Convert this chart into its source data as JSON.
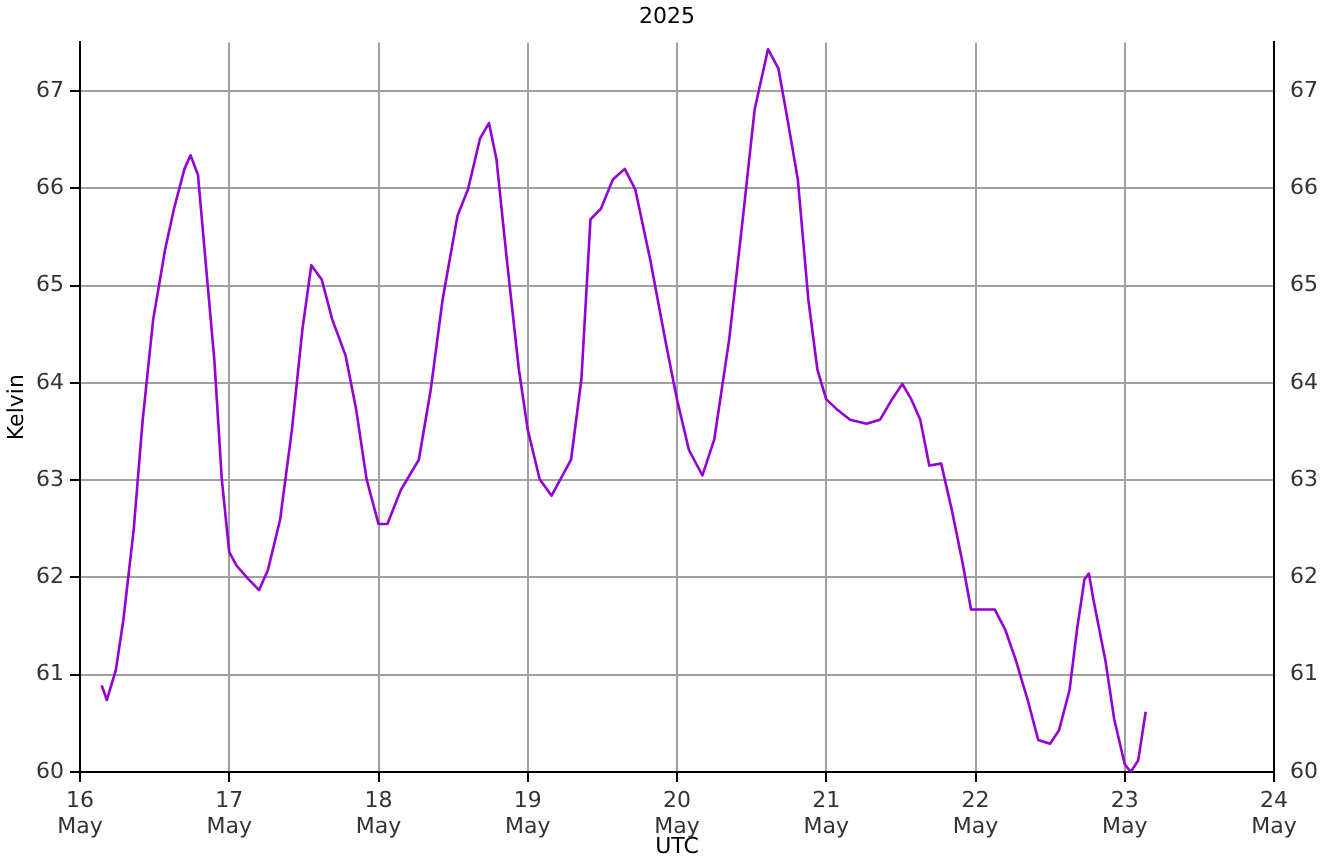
{
  "chart_data": {
    "type": "line",
    "title": "2025",
    "xlabel": "UTC",
    "ylabel": "Kelvin",
    "xlim": [
      "2025-05-16",
      "2025-05-24"
    ],
    "xticks": [
      {
        "value": "2025-05-16",
        "label": "16 May"
      },
      {
        "value": "2025-05-17",
        "label": "17 May"
      },
      {
        "value": "2025-05-18",
        "label": "18 May"
      },
      {
        "value": "2025-05-19",
        "label": "19 May"
      },
      {
        "value": "2025-05-20",
        "label": "20 May"
      },
      {
        "value": "2025-05-21",
        "label": "21 May"
      },
      {
        "value": "2025-05-22",
        "label": "22 May"
      },
      {
        "value": "2025-05-23",
        "label": "23 May"
      },
      {
        "value": "2025-05-24",
        "label": "24 May"
      }
    ],
    "ylim": [
      60,
      67.5
    ],
    "yticks": [
      60,
      61,
      62,
      63,
      64,
      65,
      66,
      67
    ],
    "y2lim": [
      60,
      67.5
    ],
    "y2ticks": [
      60,
      61,
      62,
      63,
      64,
      65,
      66,
      67
    ],
    "grid": true,
    "legend": false,
    "marker": "none",
    "line_style": "solid",
    "series": [
      {
        "color": "#9400d3",
        "x": [
          "2025-05-16T03:29",
          "2025-05-16T04:19",
          "2025-05-16T05:46",
          "2025-05-16T06:58",
          "2025-05-16T08:38",
          "2025-05-16T10:05",
          "2025-05-16T11:46",
          "2025-05-16T13:41",
          "2025-05-16T15:07",
          "2025-05-16T16:48",
          "2025-05-16T17:46",
          "2025-05-16T18:58",
          "2025-05-16T20:10",
          "2025-05-16T21:36",
          "2025-05-16T22:48",
          "2025-05-17T00:00",
          "2025-05-17T01:12",
          "2025-05-17T03:07",
          "2025-05-17T04:48",
          "2025-05-17T06:14",
          "2025-05-17T08:10",
          "2025-05-17T10:05",
          "2025-05-17T11:46",
          "2025-05-17T13:12",
          "2025-05-17T14:53",
          "2025-05-17T16:34",
          "2025-05-17T18:43",
          "2025-05-17T20:24",
          "2025-05-17T22:05",
          "2025-05-18T00:00",
          "2025-05-18T01:26",
          "2025-05-18T03:36",
          "2025-05-18T06:29",
          "2025-05-18T08:24",
          "2025-05-18T10:19",
          "2025-05-18T12:43",
          "2025-05-18T14:24",
          "2025-05-18T16:19",
          "2025-05-18T17:46",
          "2025-05-18T18:58",
          "2025-05-18T20:38",
          "2025-05-18T22:34",
          "2025-05-19T00:00",
          "2025-05-19T01:55",
          "2025-05-19T03:50",
          "2025-05-19T06:58",
          "2025-05-19T08:38",
          "2025-05-19T10:05",
          "2025-05-19T11:46",
          "2025-05-19T13:41",
          "2025-05-19T15:36",
          "2025-05-19T17:17",
          "2025-05-19T19:41",
          "2025-05-19T22:05",
          "2025-05-20T00:00",
          "2025-05-20T01:55",
          "2025-05-20T04:05",
          "2025-05-20T06:00",
          "2025-05-20T08:24",
          "2025-05-20T10:34",
          "2025-05-20T12:29",
          "2025-05-20T14:38",
          "2025-05-20T16:19",
          "2025-05-20T17:46",
          "2025-05-20T19:26",
          "2025-05-20T21:07",
          "2025-05-20T22:34",
          "2025-05-21T00:00",
          "2025-05-21T01:41",
          "2025-05-21T03:50",
          "2025-05-21T06:29",
          "2025-05-21T08:38",
          "2025-05-21T10:34",
          "2025-05-21T12:14",
          "2025-05-21T13:41",
          "2025-05-21T15:07",
          "2025-05-21T16:34",
          "2025-05-21T18:29",
          "2025-05-21T20:10",
          "2025-05-21T21:50",
          "2025-05-21T23:17",
          "2025-05-22T01:26",
          "2025-05-22T03:07",
          "2025-05-22T04:48",
          "2025-05-22T06:29",
          "2025-05-22T08:24",
          "2025-05-22T10:05",
          "2025-05-22T12:00",
          "2025-05-22T13:26",
          "2025-05-22T15:07",
          "2025-05-22T16:19",
          "2025-05-22T17:31",
          "2025-05-22T18:14",
          "2025-05-22T18:58",
          "2025-05-22T20:53",
          "2025-05-22T22:19",
          "2025-05-23T00:00",
          "2025-05-23T00:58",
          "2025-05-23T02:10",
          "2025-05-23T03:22"
        ],
        "values": [
          60.89,
          60.74,
          61.05,
          61.56,
          62.49,
          63.62,
          64.65,
          65.37,
          65.79,
          66.2,
          66.34,
          66.14,
          65.27,
          64.24,
          63.01,
          62.26,
          62.12,
          61.98,
          61.87,
          62.08,
          62.59,
          63.52,
          64.55,
          65.21,
          65.06,
          64.65,
          64.28,
          63.73,
          63.01,
          62.55,
          62.55,
          62.9,
          63.21,
          63.93,
          64.86,
          65.72,
          65.99,
          66.51,
          66.67,
          66.3,
          65.27,
          64.14,
          63.52,
          63.01,
          62.84,
          63.21,
          64.04,
          65.68,
          65.79,
          66.09,
          66.2,
          65.99,
          65.27,
          64.45,
          63.83,
          63.31,
          63.05,
          63.42,
          64.45,
          65.68,
          66.81,
          67.43,
          67.23,
          66.71,
          66.09,
          64.86,
          64.14,
          63.83,
          63.73,
          63.62,
          63.58,
          63.62,
          63.83,
          63.99,
          63.83,
          63.62,
          63.15,
          63.17,
          62.7,
          62.18,
          61.67,
          61.67,
          61.67,
          61.46,
          61.15,
          60.74,
          60.33,
          60.29,
          60.43,
          60.84,
          61.46,
          61.98,
          62.04,
          61.77,
          61.15,
          60.54,
          60.08,
          60.0,
          60.12,
          60.62
        ]
      }
    ]
  }
}
